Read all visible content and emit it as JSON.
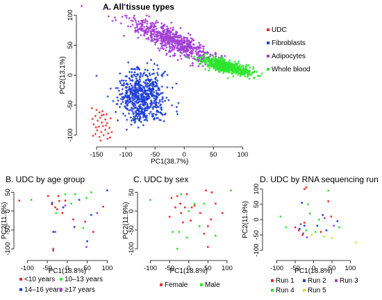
{
  "chart_data": [
    {
      "panel": "A",
      "type": "scatter",
      "title": "A.  All tissue types",
      "xlabel": "PC1(38.7%)",
      "ylabel": "PC2(13.1%)",
      "xlim": [
        -175,
        115
      ],
      "ylim": [
        -115,
        100
      ],
      "xticks": [
        -150,
        -100,
        -50,
        0,
        50,
        100
      ],
      "yticks": [
        -100,
        -50,
        0,
        50,
        100
      ],
      "legend": "right",
      "series": [
        {
          "name": "UDC",
          "color": "#ee2b2b",
          "points": [
            [
              -158,
              -55
            ],
            [
              -150,
              -58
            ],
            [
              -145,
              -62
            ],
            [
              -140,
              -60
            ],
            [
              -152,
              -68
            ],
            [
              -144,
              -71
            ],
            [
              -138,
              -66
            ],
            [
              -148,
              -76
            ],
            [
              -141,
              -79
            ],
            [
              -135,
              -74
            ],
            [
              -155,
              -82
            ],
            [
              -146,
              -86
            ],
            [
              -139,
              -85
            ],
            [
              -132,
              -80
            ],
            [
              -149,
              -92
            ],
            [
              -142,
              -95
            ],
            [
              -135,
              -91
            ],
            [
              -128,
              -88
            ],
            [
              -152,
              -98
            ],
            [
              -145,
              -103
            ],
            [
              -138,
              -100
            ],
            [
              -130,
              -97
            ],
            [
              -157,
              -73
            ],
            [
              -133,
              -65
            ],
            [
              -126,
              -72
            ],
            [
              -127,
              -104
            ],
            [
              -143,
              -109
            ],
            [
              -151,
              -87
            ],
            [
              -134,
              -84
            ],
            [
              -141,
              -67
            ],
            [
              -131,
              -106
            ],
            [
              -156,
              -101
            ],
            [
              -124,
              -95
            ]
          ]
        },
        {
          "name": "Fibroblasts",
          "color": "#1f3fd6",
          "center": [
            -72,
            -36
          ],
          "spread": [
            26,
            26
          ],
          "rotation_deg": 35,
          "count": 650
        },
        {
          "name": "Adipocytes",
          "color": "#a23ed6",
          "center": [
            -20,
            57
          ],
          "spread": [
            52,
            12
          ],
          "rotation_deg": -24,
          "count": 650
        },
        {
          "name": "Whole blood",
          "color": "#2ee52e",
          "center": [
            70,
            15
          ],
          "spread": [
            28,
            6
          ],
          "rotation_deg": -14,
          "count": 650
        }
      ]
    },
    {
      "panel": "B",
      "type": "scatter",
      "title": "B.  UDC by age group",
      "xlabel": "PC1(18.8%)",
      "ylabel": "PC2(11.9%)",
      "xlim": [
        -130,
        115
      ],
      "ylim": [
        -120,
        75
      ],
      "xticks": [
        -100,
        -50,
        0,
        50,
        100
      ],
      "yticks": [
        -100,
        -50,
        0,
        50
      ],
      "legend": "bottom",
      "series": [
        {
          "name": "<10 years",
          "color": "#ee2b2b",
          "points": [
            [
              -120,
              28
            ],
            [
              -48,
              40
            ],
            [
              -22,
              40
            ],
            [
              -20,
              27
            ],
            [
              -38,
              18
            ],
            [
              -30,
              10
            ],
            [
              -25,
              5
            ],
            [
              -12,
              -5
            ],
            [
              15,
              -22
            ],
            [
              65,
              -55
            ],
            [
              -35,
              -100
            ],
            [
              -5,
              28
            ],
            [
              90,
              12
            ],
            [
              45,
              -28
            ]
          ]
        },
        {
          "name": "10–13 years",
          "color": "#2ee52e",
          "points": [
            [
              -90,
              30
            ],
            [
              -5,
              45
            ],
            [
              20,
              45
            ],
            [
              60,
              50
            ],
            [
              48,
              35
            ],
            [
              10,
              20
            ],
            [
              40,
              -45
            ],
            [
              -28,
              -5
            ]
          ]
        },
        {
          "name": "14–16 years",
          "color": "#1f3fd6",
          "points": [
            [
              -38,
              22
            ],
            [
              -10,
              10
            ],
            [
              30,
              30
            ],
            [
              60,
              -10
            ],
            [
              -35,
              -55
            ],
            [
              100,
              55
            ],
            [
              18,
              -42
            ],
            [
              50,
              -80
            ]
          ]
        },
        {
          "name": "≥17 years",
          "color": "#a23ed6",
          "points": [
            [
              -30,
              -55
            ],
            [
              -35,
              -105
            ],
            [
              -5,
              15
            ],
            [
              48,
              -95
            ],
            [
              75,
              -5
            ]
          ]
        }
      ]
    },
    {
      "panel": "C",
      "type": "scatter",
      "title": "C.  UDC by sex",
      "xlabel": "PC1(18.8%)",
      "ylabel": "PC2(11.9%)",
      "xlim": [
        -130,
        120
      ],
      "ylim": [
        -120,
        75
      ],
      "xticks": [
        -100,
        -50,
        0,
        50,
        100
      ],
      "yticks": [
        -100,
        -50,
        0,
        50
      ],
      "legend": "bottom",
      "series": [
        {
          "name": "Female",
          "color": "#ee2b2b",
          "points": [
            [
              -45,
              35
            ],
            [
              -30,
              40
            ],
            [
              -22,
              20
            ],
            [
              -10,
              10
            ],
            [
              8,
              10
            ],
            [
              -35,
              10
            ],
            [
              -20,
              -5
            ],
            [
              5,
              -25
            ],
            [
              45,
              55
            ],
            [
              70,
              20
            ],
            [
              50,
              -40
            ],
            [
              50,
              -95
            ],
            [
              40,
              -60
            ],
            [
              88,
              -5
            ],
            [
              58,
              -22
            ],
            [
              -5,
              45
            ],
            [
              30,
              -5
            ],
            [
              -50,
              -15
            ],
            [
              15,
              15
            ],
            [
              -15,
              -30
            ],
            [
              60,
              50
            ]
          ]
        },
        {
          "name": "Male",
          "color": "#2ee52e",
          "points": [
            [
              -100,
              30
            ],
            [
              -20,
              45
            ],
            [
              15,
              20
            ],
            [
              -42,
              -55
            ],
            [
              -25,
              -55
            ],
            [
              -30,
              -100
            ],
            [
              40,
              20
            ],
            [
              28,
              -40
            ],
            [
              70,
              -65
            ],
            [
              110,
              55
            ],
            [
              -5,
              -70
            ],
            [
              0,
              0
            ]
          ]
        }
      ]
    },
    {
      "panel": "D",
      "type": "scatter",
      "title": "D.  UDC by RNA sequencing run",
      "xlabel": "PC1(18.8%)",
      "ylabel": "PC2(11.9%)",
      "xlim": [
        -120,
        120
      ],
      "ylim": [
        -120,
        120
      ],
      "xticks": [
        -100,
        -50,
        0,
        50,
        100
      ],
      "yticks": [
        -100,
        -50,
        0,
        50,
        100
      ],
      "legend": "bottom",
      "series": [
        {
          "name": "Run 1",
          "color": "#ee2b2b",
          "points": [
            [
              -25,
              100
            ],
            [
              -20,
              105
            ],
            [
              40,
              60
            ],
            [
              -10,
              20
            ],
            [
              -50,
              -25
            ],
            [
              -40,
              -35
            ],
            [
              -30,
              -50
            ],
            [
              -25,
              -10
            ],
            [
              20,
              -40
            ],
            [
              48,
              10
            ]
          ]
        },
        {
          "name": "Run 2",
          "color": "#1f3fd6",
          "points": [
            [
              -32,
              55
            ],
            [
              -25,
              -20
            ],
            [
              10,
              -20
            ],
            [
              35,
              -35
            ],
            [
              65,
              -5
            ],
            [
              -38,
              -30
            ],
            [
              25,
              15
            ]
          ]
        },
        {
          "name": "Run 3",
          "color": "#a23ed6",
          "points": [
            [
              -35,
              -15
            ],
            [
              -28,
              -45
            ],
            [
              -18,
              -58
            ],
            [
              30,
              5
            ],
            [
              55,
              -20
            ]
          ]
        },
        {
          "name": "Run 4",
          "color": "#2ee52e",
          "points": [
            [
              -15,
              50
            ],
            [
              -10,
              20
            ],
            [
              -75,
              -25
            ],
            [
              -90,
              10
            ],
            [
              5,
              -40
            ],
            [
              -20,
              -35
            ],
            [
              40,
              95
            ],
            [
              70,
              -25
            ],
            [
              15,
              0
            ]
          ]
        },
        {
          "name": "Run 5",
          "color": "#d7e02b",
          "points": [
            [
              50,
              -60
            ],
            [
              115,
              -75
            ],
            [
              -5,
              -50
            ],
            [
              28,
              -55
            ]
          ]
        }
      ]
    }
  ]
}
